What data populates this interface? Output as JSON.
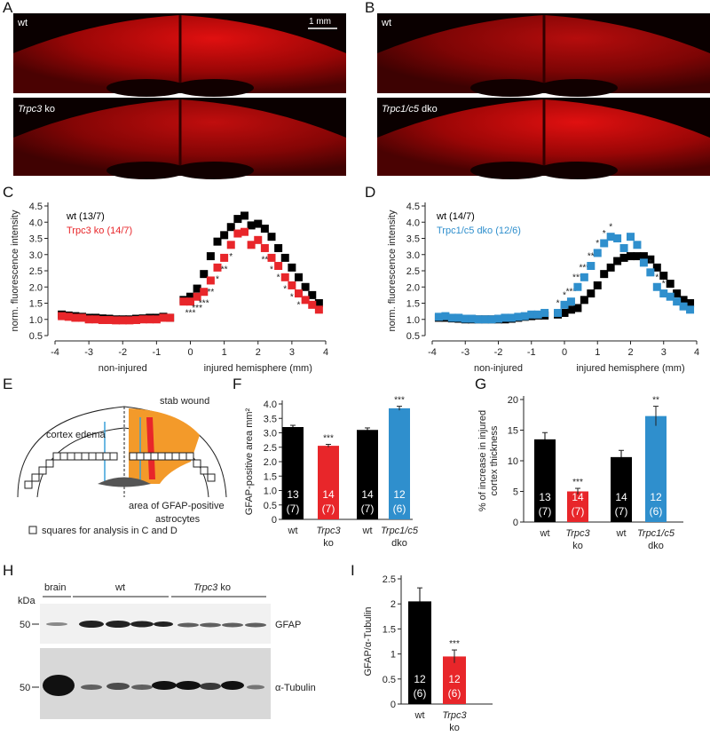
{
  "panel_labels": [
    "A",
    "B",
    "C",
    "D",
    "E",
    "F",
    "G",
    "H",
    "I"
  ],
  "micrographs": [
    {
      "label": "wt",
      "scale_bar": "1 mm"
    },
    {
      "gene": "Trpc3",
      "suffix": "ko"
    },
    {
      "label": "wt"
    },
    {
      "gene": "Trpc1/c5",
      "suffix": "dko"
    }
  ],
  "schematic": {
    "cortex_edema": "cortex edema",
    "stab_wound": "stab wound",
    "gfap_area": [
      "area of GFAP-positive",
      "astrocytes"
    ],
    "legend": "squares for analysis in C and D"
  },
  "blot": {
    "unit": "kDa",
    "brain": "brain",
    "group_wt": "wt",
    "group_ko_gene": "Trpc3",
    "group_ko_suffix": "ko",
    "markers": [
      50,
      50
    ],
    "bands": [
      "GFAP",
      "α-Tubulin"
    ]
  },
  "chart_data": [
    {
      "type": "scatter",
      "ylabel": "norm. fluorescence intensity",
      "xlabel_left": "non-injured",
      "xlabel_right": "injured hemisphere (mm)",
      "x": [
        -3.8,
        -3.6,
        -3.4,
        -3.2,
        -3,
        -2.8,
        -2.6,
        -2.4,
        -2.2,
        -2,
        -1.8,
        -1.6,
        -1.4,
        -1.2,
        -1,
        -0.8,
        -0.6,
        -0.2,
        0,
        0.2,
        0.4,
        0.6,
        0.8,
        1,
        1.2,
        1.4,
        1.6,
        1.8,
        2,
        2.2,
        2.4,
        2.6,
        2.8,
        3,
        3.2,
        3.4,
        3.6,
        3.8
      ],
      "xlim": [
        -4,
        4
      ],
      "xticks": [
        -4,
        -3,
        -2,
        -1,
        0,
        1,
        2,
        3,
        4
      ],
      "ylim": [
        0.5,
        4.5
      ],
      "yticks": [
        0.5,
        {
          "value": 1,
          "label": "1.0"
        },
        1.5,
        {
          "value": 2,
          "label": "2.0"
        },
        2.5,
        {
          "value": 3,
          "label": "3.0"
        },
        3.5,
        {
          "value": 4,
          "label": "4.0"
        },
        4.5
      ],
      "series": [
        {
          "name": "wt (13/7)",
          "color": "#000000",
          "values": [
            1.15,
            1.12,
            1.1,
            1.08,
            1.05,
            1.05,
            1.03,
            1.02,
            1,
            1,
            1,
            1.02,
            1.03,
            1.05,
            1.05,
            1.08,
            1.05,
            1.6,
            1.7,
            1.95,
            2.4,
            2.95,
            3.4,
            3.6,
            3.85,
            4.1,
            4.2,
            3.9,
            3.95,
            3.8,
            3.55,
            3.2,
            2.9,
            2.6,
            2.3,
            2,
            1.75,
            1.5
          ]
        },
        {
          "name": "Trpc3 ko (14/7)",
          "color": "#e8262a",
          "values": [
            1.1,
            1.08,
            1.05,
            1.05,
            1,
            1,
            0.98,
            0.98,
            0.97,
            0.97,
            0.97,
            0.98,
            1,
            1,
            1,
            1.05,
            1.05,
            1.55,
            1.55,
            1.7,
            1.85,
            2.2,
            2.6,
            2.9,
            3.3,
            3.65,
            3.7,
            3.3,
            3.45,
            3.2,
            2.9,
            2.65,
            2.3,
            2.05,
            1.8,
            1.6,
            1.45,
            1.3
          ],
          "significance": [
            null,
            null,
            null,
            null,
            null,
            null,
            null,
            null,
            null,
            null,
            null,
            null,
            null,
            null,
            null,
            null,
            null,
            null,
            "***",
            "***",
            "***",
            "**",
            "*",
            "**",
            "*",
            null,
            null,
            null,
            null,
            "**",
            "*",
            "*",
            "*",
            "*",
            "*",
            null,
            null,
            null
          ]
        }
      ]
    },
    {
      "type": "scatter",
      "ylabel": "norm. fluorescence intensity",
      "xlabel_left": "non-injured",
      "xlabel_right": "injured hemisphere (mm)",
      "x": [
        -3.8,
        -3.6,
        -3.4,
        -3.2,
        -3,
        -2.8,
        -2.6,
        -2.4,
        -2.2,
        -2,
        -1.8,
        -1.6,
        -1.4,
        -1.2,
        -1,
        -0.8,
        -0.6,
        -0.2,
        0,
        0.2,
        0.4,
        0.6,
        0.8,
        1,
        1.2,
        1.4,
        1.6,
        1.8,
        2,
        2.2,
        2.4,
        2.6,
        2.8,
        3,
        3.2,
        3.4,
        3.6,
        3.8
      ],
      "xlim": [
        -4,
        4
      ],
      "xticks": [
        -4,
        -3,
        -2,
        -1,
        0,
        1,
        2,
        3,
        4
      ],
      "ylim": [
        0.5,
        4.5
      ],
      "yticks": [
        0.5,
        {
          "value": 1,
          "label": "1.0"
        },
        1.5,
        {
          "value": 2,
          "label": "2.0"
        },
        2.5,
        {
          "value": 3,
          "label": "3.0"
        },
        3.5,
        {
          "value": 4,
          "label": "4.0"
        },
        4.5
      ],
      "series": [
        {
          "name": "wt (14/7)",
          "color": "#000000",
          "values": [
            1.05,
            1.05,
            1.03,
            1.02,
            1,
            1,
            1,
            1,
            1,
            1,
            1,
            1.02,
            1.05,
            1.08,
            1.1,
            1.12,
            1.12,
            1.15,
            1.2,
            1.3,
            1.35,
            1.6,
            1.8,
            2.05,
            2.4,
            2.6,
            2.8,
            2.9,
            2.95,
            2.95,
            2.95,
            2.85,
            2.6,
            2.35,
            2.1,
            1.8,
            1.6,
            1.5
          ]
        },
        {
          "name": "Trpc1/c5 dko (12/6)",
          "color": "#2f8fcd",
          "values": [
            1.08,
            1.1,
            1.05,
            1.05,
            1.02,
            1.02,
            1,
            1,
            1,
            1.02,
            1.05,
            1.05,
            1.08,
            1.1,
            1.15,
            1.15,
            1.2,
            1.2,
            1.45,
            1.55,
            2,
            2.3,
            2.65,
            3.05,
            3.35,
            3.55,
            3.5,
            3.2,
            3.55,
            3.3,
            2.75,
            2.45,
            2,
            1.8,
            1.7,
            1.55,
            1.4,
            1.3
          ],
          "significance": [
            null,
            null,
            null,
            null,
            null,
            null,
            null,
            null,
            null,
            null,
            null,
            null,
            null,
            null,
            null,
            null,
            null,
            "*",
            "*",
            "***",
            "***",
            "***",
            "**",
            "*",
            "*",
            "*",
            null,
            null,
            null,
            null,
            null,
            "*",
            "*",
            "*",
            null,
            null,
            null,
            null
          ]
        }
      ]
    },
    {
      "type": "bar",
      "ylabel": "GFAP-positive area mm²",
      "categories": [
        "wt",
        "Trpc3",
        "wt",
        "Trpc1/c5"
      ],
      "category_sublabels": [
        null,
        "ko",
        null,
        "dko"
      ],
      "values": [
        3.2,
        2.55,
        3.1,
        3.85
      ],
      "errors": [
        0.06,
        0.05,
        0.07,
        0.07
      ],
      "colors": [
        "#000000",
        "#e8262a",
        "#000000",
        "#2f8fcd"
      ],
      "n_labels": [
        "13",
        "14",
        "14",
        "12"
      ],
      "animal_labels": [
        "(7)",
        "(7)",
        "(7)",
        "(6)"
      ],
      "significance": [
        null,
        "***",
        null,
        "***"
      ],
      "ylim": [
        0,
        4
      ],
      "yticks": [
        0,
        0.5,
        {
          "value": 1,
          "label": "1.0"
        },
        1.5,
        {
          "value": 2,
          "label": "2.0"
        },
        2.5,
        {
          "value": 3,
          "label": "3.0"
        },
        3.5,
        {
          "value": 4,
          "label": "4.0"
        }
      ]
    },
    {
      "type": "bar",
      "ylabel": [
        "% of increase in injured",
        "cortex thickness"
      ],
      "categories": [
        "wt",
        "Trpc3",
        "wt",
        "Trpc1/c5"
      ],
      "category_sublabels": [
        null,
        "ko",
        null,
        "dko"
      ],
      "values": [
        13.5,
        5,
        10.6,
        17.3
      ],
      "errors": [
        1.1,
        0.5,
        1.1,
        1.6
      ],
      "colors": [
        "#000000",
        "#e8262a",
        "#000000",
        "#2f8fcd"
      ],
      "n_labels": [
        "13",
        "14",
        "14",
        "12"
      ],
      "animal_labels": [
        "(7)",
        "(7)",
        "(7)",
        "(6)"
      ],
      "significance": [
        null,
        "***",
        null,
        "**"
      ],
      "ylim": [
        0,
        20
      ],
      "yticks": [
        0,
        5,
        10,
        15,
        20
      ]
    },
    {
      "type": "bar",
      "ylabel": "GFAP/α-Tubulin",
      "categories": [
        "wt",
        "Trpc3"
      ],
      "category_sublabels": [
        null,
        "ko"
      ],
      "values": [
        2.05,
        0.95
      ],
      "errors": [
        0.27,
        0.13
      ],
      "colors": [
        "#000000",
        "#e8262a"
      ],
      "n_labels": [
        "12",
        "12"
      ],
      "animal_labels": [
        "(6)",
        "(6)"
      ],
      "significance": [
        null,
        "***"
      ],
      "ylim": [
        0,
        2.5
      ],
      "yticks": [
        0,
        0.5,
        1,
        1.5,
        2,
        2.5
      ]
    }
  ]
}
